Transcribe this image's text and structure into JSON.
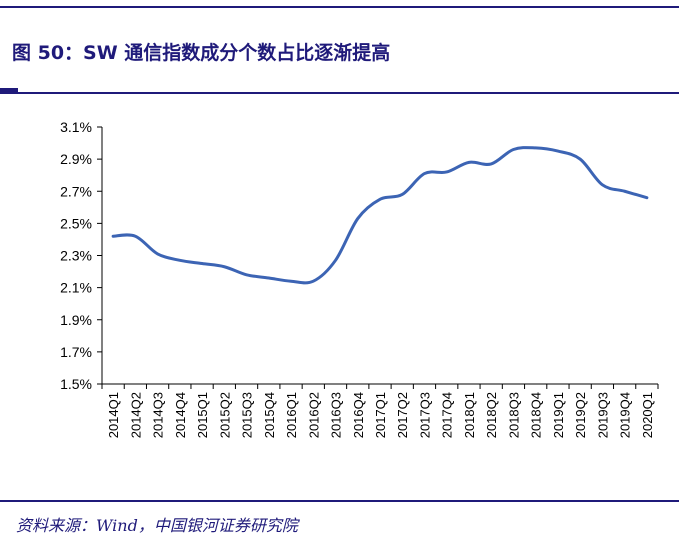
{
  "title": "图 50：SW 通信指数成分个数占比逐渐提高",
  "source": "资料来源：Wind，中国银河证券研究院",
  "colors": {
    "brand": "#1f1a7a",
    "line": "#3c64b4"
  },
  "chart_data": {
    "type": "line",
    "title": "",
    "xlabel": "",
    "ylabel": "",
    "grid": false,
    "ylim": [
      1.5,
      3.1
    ],
    "yticks": [
      "1.5%",
      "1.7%",
      "1.9%",
      "2.1%",
      "2.3%",
      "2.5%",
      "2.7%",
      "2.9%",
      "3.1%"
    ],
    "categories": [
      "2014Q1",
      "2014Q2",
      "2014Q3",
      "2014Q4",
      "2015Q1",
      "2015Q2",
      "2015Q3",
      "2015Q4",
      "2016Q1",
      "2016Q2",
      "2016Q3",
      "2016Q4",
      "2017Q1",
      "2017Q2",
      "2017Q3",
      "2017Q4",
      "2018Q1",
      "2018Q2",
      "2018Q3",
      "2018Q4",
      "2019Q1",
      "2019Q2",
      "2019Q3",
      "2019Q4",
      "2020Q1"
    ],
    "series": [
      {
        "values": [
          2.42,
          2.42,
          2.31,
          2.27,
          2.25,
          2.23,
          2.18,
          2.16,
          2.14,
          2.14,
          2.27,
          2.53,
          2.65,
          2.68,
          2.81,
          2.82,
          2.88,
          2.87,
          2.96,
          2.97,
          2.95,
          2.9,
          2.74,
          2.7,
          2.66
        ]
      }
    ]
  }
}
